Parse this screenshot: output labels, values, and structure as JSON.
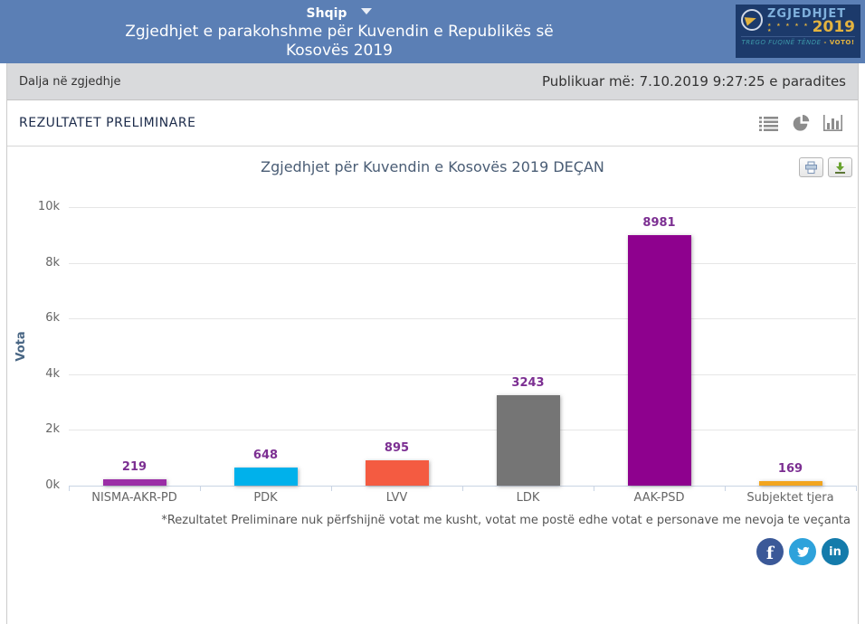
{
  "header": {
    "language_selector": "Shqip",
    "title_line1": "Zgjedhjet e parakohshme për Kuvendin e Republikës së",
    "title_line2": "Kosovës 2019",
    "logo": {
      "name": "ZGJEDHJET",
      "year": "2019",
      "stars": "★ ★ ★ ★ ★ ★",
      "tagline": "TREGO FUQINË TËNDE",
      "tagline_cta": "- VOTO!"
    }
  },
  "topbar": {
    "left_link": "Dalja në zgjedhje",
    "published": "Publikuar më: 7.10.2019 9:27:25 e paradites"
  },
  "results": {
    "heading": "REZULTATET PRELIMINARE",
    "view_icons": [
      "list-view-icon",
      "pie-chart-view-icon",
      "bar-chart-view-icon"
    ]
  },
  "chart": {
    "title": "Zgjedhjet për Kuvendin e Kosovës 2019 DEÇAN",
    "footnote": "*Rezultatet Preliminare nuk përfshijnë votat me kusht, votat me postë edhe votat e personave me nevoja te veçanta",
    "export_buttons": [
      "print",
      "download"
    ]
  },
  "chart_data": {
    "type": "bar",
    "title": "Zgjedhjet për Kuvendin e Kosovës 2019 DEÇAN",
    "categories": [
      "NISMA-AKR-PD",
      "PDK",
      "LVV",
      "LDK",
      "AAK-PSD",
      "Subjektet tjera"
    ],
    "values": [
      219,
      648,
      895,
      3243,
      8981,
      169
    ],
    "bar_colors": [
      "#9b2da6",
      "#00b1eb",
      "#f45b41",
      "#757575",
      "#8e018e",
      "#f2a51e"
    ],
    "data_label_color": "#7c2f92",
    "xlabel": "",
    "ylabel": "Vota",
    "ylim": [
      0,
      10000
    ],
    "ytick_labels": [
      "0k",
      "2k",
      "4k",
      "6k",
      "8k",
      "10k"
    ],
    "grid": true,
    "legend": false
  },
  "social": [
    {
      "name": "facebook",
      "color": "#3b5998",
      "glyph": "f"
    },
    {
      "name": "twitter",
      "color": "#2ea2db",
      "glyph": "bird"
    },
    {
      "name": "linkedin",
      "color": "#147bab",
      "glyph": "in"
    }
  ]
}
